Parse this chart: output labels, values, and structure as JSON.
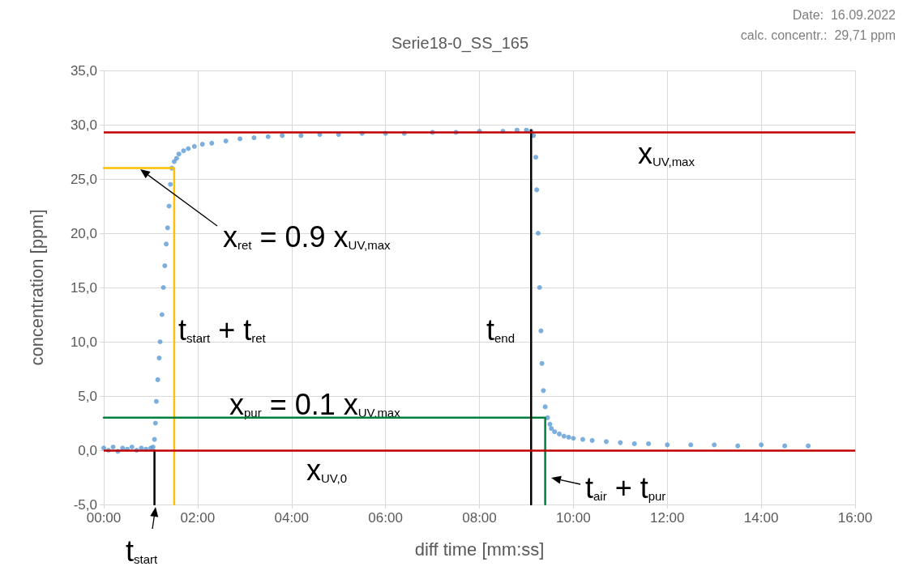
{
  "chart_data": {
    "type": "scatter",
    "title": "Serie18-0_SS_165",
    "xlabel": "diff time [mm:ss]",
    "ylabel": "concentration [ppm]",
    "xlim": [
      0,
      16
    ],
    "xticks": [
      {
        "value": 0,
        "label": "00:00"
      },
      {
        "value": 2,
        "label": "02:00"
      },
      {
        "value": 4,
        "label": "04:00"
      },
      {
        "value": 6,
        "label": "06:00"
      },
      {
        "value": 8,
        "label": "08:00"
      },
      {
        "value": 10,
        "label": "10:00"
      },
      {
        "value": 12,
        "label": "12:00"
      },
      {
        "value": 14,
        "label": "14:00"
      },
      {
        "value": 16,
        "label": "16:00"
      }
    ],
    "ylim": [
      -5,
      35
    ],
    "yticks": [
      {
        "value": -5,
        "label": "-5,0"
      },
      {
        "value": 0,
        "label": "0,0"
      },
      {
        "value": 5,
        "label": "5,0"
      },
      {
        "value": 10,
        "label": "10,0"
      },
      {
        "value": 15,
        "label": "15,0"
      },
      {
        "value": 20,
        "label": "20,0"
      },
      {
        "value": 25,
        "label": "25,0"
      },
      {
        "value": 30,
        "label": "30,0"
      },
      {
        "value": 35,
        "label": "35,0"
      }
    ],
    "grid": true,
    "marker": "circle",
    "series": [
      {
        "color": "#5b9bd5",
        "x": [
          0,
          0.1,
          0.2,
          0.3,
          0.4,
          0.5,
          0.6,
          0.7,
          0.8,
          0.9,
          1.0,
          1.05,
          1.08,
          1.1,
          1.12,
          1.15,
          1.18,
          1.2,
          1.24,
          1.27,
          1.3,
          1.33,
          1.36,
          1.39,
          1.42,
          1.45,
          1.5,
          1.55,
          1.6,
          1.7,
          1.8,
          1.93,
          2.1,
          2.3,
          2.6,
          2.9,
          3.2,
          3.5,
          3.8,
          4.2,
          4.6,
          5.0,
          5.5,
          6.0,
          6.4,
          7.0,
          7.5,
          8.0,
          8.5,
          8.8,
          9.0,
          9.1,
          9.15,
          9.2,
          9.22,
          9.25,
          9.28,
          9.31,
          9.33,
          9.36,
          9.4,
          9.45,
          9.5,
          9.53,
          9.6,
          9.7,
          9.8,
          9.9,
          10.0,
          10.2,
          10.4,
          10.7,
          11.0,
          11.3,
          11.6,
          12.0,
          12.5,
          13.0,
          13.5,
          14.0,
          14.5,
          15.0
        ],
        "values": [
          0.2,
          0.0,
          0.3,
          -0.1,
          0.2,
          0.1,
          0.3,
          0.0,
          0.2,
          0.1,
          0.2,
          0.3,
          1.0,
          2.5,
          4.5,
          6.5,
          8.5,
          10.0,
          12.5,
          15.0,
          17.0,
          19.0,
          20.5,
          22.5,
          24.5,
          26.0,
          26.6,
          26.9,
          27.3,
          27.6,
          27.8,
          28.0,
          28.2,
          28.3,
          28.5,
          28.7,
          28.8,
          28.9,
          29.0,
          29.0,
          29.1,
          29.1,
          29.2,
          29.2,
          29.2,
          29.3,
          29.3,
          29.4,
          29.4,
          29.5,
          29.5,
          29.4,
          29.0,
          27.0,
          24.0,
          20.0,
          15.0,
          11.0,
          8.0,
          5.5,
          4.0,
          3.0,
          2.4,
          2.0,
          1.7,
          1.5,
          1.3,
          1.2,
          1.1,
          1.0,
          0.9,
          0.8,
          0.7,
          0.6,
          0.6,
          0.5,
          0.5,
          0.5,
          0.4,
          0.5,
          0.4,
          0.4
        ]
      },
      {
        "type": "line",
        "marker": "none",
        "color": "#ffc000",
        "x": [
          0,
          1.5,
          1.5
        ],
        "values": [
          26,
          26,
          -5
        ]
      },
      {
        "type": "line",
        "marker": "none",
        "color": "#00803c",
        "x": [
          0,
          9.4,
          9.4
        ],
        "values": [
          3,
          3,
          -5
        ]
      },
      {
        "type": "line",
        "marker": "none",
        "color": "#000000",
        "x": [
          1.08,
          1.08
        ],
        "values": [
          -5,
          0
        ]
      },
      {
        "type": "line",
        "marker": "none",
        "color": "#000000",
        "x": [
          9.1,
          9.1
        ],
        "values": [
          -5,
          29.5
        ]
      }
    ],
    "ref_lines": [
      {
        "axis": "y",
        "value": 29.3,
        "color": "#c00000"
      },
      {
        "axis": "y",
        "value": 0,
        "color": "#c00000"
      }
    ],
    "annotations": [
      "Date:  16.09.2022",
      "calc. concentr.:  29,71 ppm",
      "x$_{ret}$ = 0.9 x$_{UV,max}$",
      "x$_{UV,max}$",
      "t$_{start}$ + t$_{ret}$",
      "t$_{end}$",
      "x$_{pur}$ = 0.1 x$_{UV,max}$",
      "x$_{UV,0}$",
      "t$_{air}$ + t$_{pur}$",
      "t$_{start}$"
    ]
  }
}
